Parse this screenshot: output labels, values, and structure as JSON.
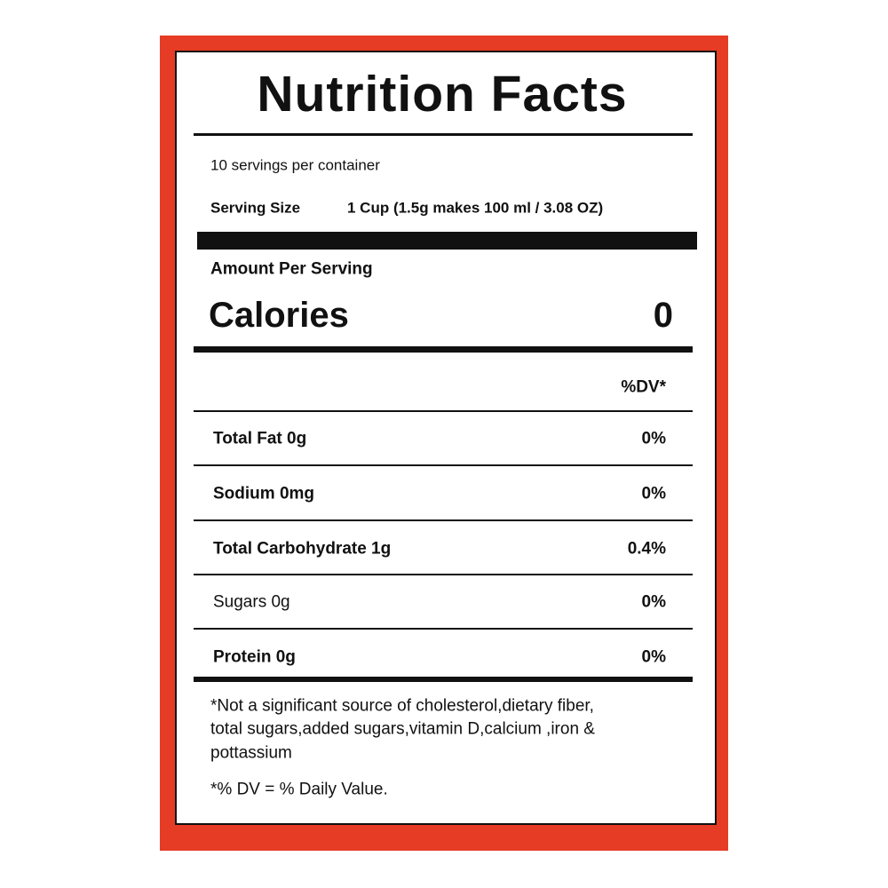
{
  "header": {
    "title": "Nutrition Facts"
  },
  "servings": "10 servings per container",
  "serving_size": {
    "label": "Serving Size",
    "value": "1 Cup (1.5g makes 100 ml / 3.08 OZ)"
  },
  "amount_per_serving": "Amount Per Serving",
  "calories": {
    "label": "Calories",
    "value": 0
  },
  "dv_header": "%DV*",
  "nutrients": [
    {
      "name": "Total Fat 0g",
      "dv": "0%"
    },
    {
      "name": "Sodium 0mg",
      "dv": "0%"
    },
    {
      "name": "Total Carbohydrate 1g",
      "dv": "0.4%"
    },
    {
      "name": "Sugars 0g",
      "dv": "0%"
    },
    {
      "name": "Protein 0g",
      "dv": "0%"
    }
  ],
  "footnote": {
    "lines": [
      "*Not a significant source of cholesterol,dietary fiber,",
      "total sugars,added sugars,vitamin D,calcium ,iron &",
      "pottassium"
    ],
    "dv_note": "*% DV = % Daily Value."
  }
}
